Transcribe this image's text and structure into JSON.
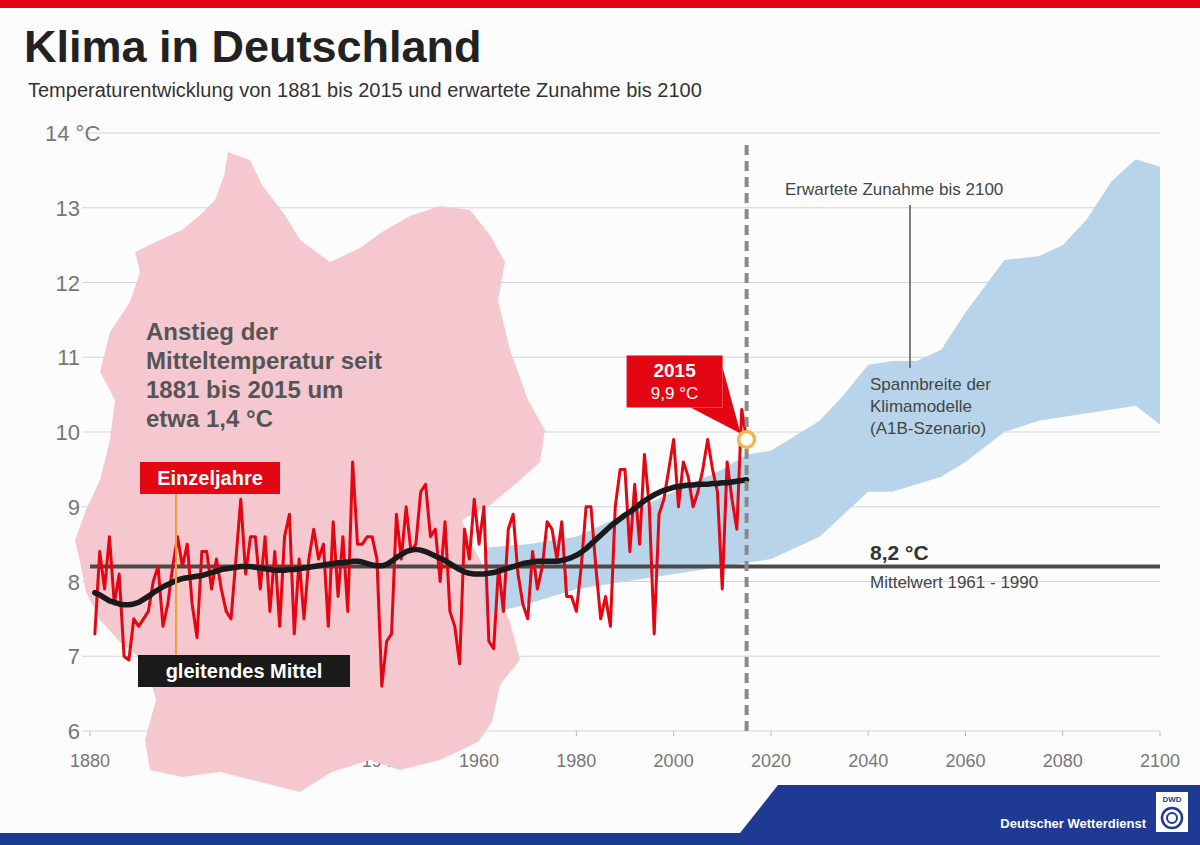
{
  "chart_data": {
    "type": "line",
    "title": "Klima in Deutschland",
    "subtitle": "Temperaturentwicklung von 1881 bis 2015 und erwartete Zunahme bis 2100",
    "x": [
      1881,
      1882,
      1883,
      1884,
      1885,
      1886,
      1887,
      1888,
      1889,
      1890,
      1891,
      1892,
      1893,
      1894,
      1895,
      1896,
      1897,
      1898,
      1899,
      1900,
      1901,
      1902,
      1903,
      1904,
      1905,
      1906,
      1907,
      1908,
      1909,
      1910,
      1911,
      1912,
      1913,
      1914,
      1915,
      1916,
      1917,
      1918,
      1919,
      1920,
      1921,
      1922,
      1923,
      1924,
      1925,
      1926,
      1927,
      1928,
      1929,
      1930,
      1931,
      1932,
      1933,
      1934,
      1935,
      1936,
      1937,
      1938,
      1939,
      1940,
      1941,
      1942,
      1943,
      1944,
      1945,
      1946,
      1947,
      1948,
      1949,
      1950,
      1951,
      1952,
      1953,
      1954,
      1955,
      1956,
      1957,
      1958,
      1959,
      1960,
      1961,
      1962,
      1963,
      1964,
      1965,
      1966,
      1967,
      1968,
      1969,
      1970,
      1971,
      1972,
      1973,
      1974,
      1975,
      1976,
      1977,
      1978,
      1979,
      1980,
      1981,
      1982,
      1983,
      1984,
      1985,
      1986,
      1987,
      1988,
      1989,
      1990,
      1991,
      1992,
      1993,
      1994,
      1995,
      1996,
      1997,
      1998,
      1999,
      2000,
      2001,
      2002,
      2003,
      2004,
      2005,
      2006,
      2007,
      2008,
      2009,
      2010,
      2011,
      2012,
      2013,
      2014,
      2015
    ],
    "series": [
      {
        "name": "Einzeljahre",
        "color": "#e30613",
        "values": [
          7.3,
          8.4,
          7.9,
          8.6,
          7.7,
          8.1,
          7.0,
          6.95,
          7.5,
          7.4,
          7.5,
          7.6,
          8.0,
          8.2,
          7.4,
          7.7,
          8.2,
          8.6,
          8.2,
          8.5,
          7.7,
          7.25,
          8.4,
          8.4,
          7.9,
          8.3,
          7.9,
          7.6,
          7.5,
          8.3,
          9.1,
          8.1,
          8.6,
          8.6,
          7.9,
          8.6,
          7.6,
          8.4,
          7.4,
          8.6,
          8.9,
          7.3,
          8.3,
          7.5,
          8.3,
          8.7,
          8.3,
          8.5,
          7.4,
          8.8,
          7.8,
          8.6,
          7.6,
          9.6,
          8.5,
          8.5,
          8.6,
          8.6,
          8.3,
          6.6,
          7.2,
          7.3,
          8.9,
          8.3,
          9.0,
          8.4,
          8.5,
          9.2,
          9.3,
          8.6,
          8.7,
          8.0,
          8.8,
          7.6,
          7.4,
          6.9,
          8.7,
          8.3,
          9.1,
          8.5,
          9.0,
          7.2,
          7.1,
          8.2,
          7.6,
          8.7,
          8.9,
          8.1,
          7.7,
          7.5,
          8.4,
          7.9,
          8.2,
          8.8,
          8.7,
          8.3,
          8.8,
          7.8,
          7.8,
          7.6,
          8.2,
          9.0,
          9.0,
          8.2,
          7.5,
          7.8,
          7.4,
          9.0,
          9.5,
          9.5,
          8.4,
          9.3,
          8.5,
          9.7,
          9.0,
          7.3,
          8.9,
          9.1,
          9.5,
          9.9,
          9.0,
          9.6,
          9.4,
          9.0,
          9.2,
          9.5,
          9.9,
          9.5,
          9.2,
          7.9,
          9.6,
          9.1,
          8.7,
          10.3,
          9.9
        ]
      },
      {
        "name": "gleitendes Mittel",
        "color": "#1a1a1a",
        "values": [
          7.85,
          7.82,
          7.78,
          7.74,
          7.72,
          7.7,
          7.69,
          7.69,
          7.7,
          7.72,
          7.76,
          7.8,
          7.85,
          7.89,
          7.93,
          7.96,
          7.99,
          8.02,
          8.04,
          8.05,
          8.06,
          8.07,
          8.08,
          8.1,
          8.12,
          8.14,
          8.16,
          8.17,
          8.18,
          8.19,
          8.2,
          8.2,
          8.2,
          8.19,
          8.18,
          8.17,
          8.16,
          8.15,
          8.15,
          8.15,
          8.16,
          8.16,
          8.17,
          8.18,
          8.19,
          8.2,
          8.21,
          8.22,
          8.23,
          8.24,
          8.25,
          8.25,
          8.26,
          8.27,
          8.27,
          8.26,
          8.24,
          8.22,
          8.21,
          8.21,
          8.23,
          8.27,
          8.32,
          8.36,
          8.4,
          8.42,
          8.43,
          8.42,
          8.4,
          8.37,
          8.34,
          8.31,
          8.28,
          8.24,
          8.2,
          8.16,
          8.13,
          8.11,
          8.1,
          8.1,
          8.1,
          8.11,
          8.12,
          8.14,
          8.16,
          8.18,
          8.2,
          8.22,
          8.24,
          8.25,
          8.26,
          8.27,
          8.27,
          8.27,
          8.27,
          8.27,
          8.28,
          8.3,
          8.32,
          8.35,
          8.39,
          8.44,
          8.5,
          8.56,
          8.62,
          8.68,
          8.74,
          8.79,
          8.84,
          8.89,
          8.93,
          8.98,
          9.03,
          9.08,
          9.12,
          9.16,
          9.19,
          9.22,
          9.24,
          9.26,
          9.27,
          9.28,
          9.29,
          9.29,
          9.3,
          9.3,
          9.3,
          9.31,
          9.31,
          9.32,
          9.32,
          9.33,
          9.34,
          9.35,
          9.36
        ]
      },
      {
        "name": "Spannbreite der Klimamodelle (A1B-Szenario)",
        "type": "area",
        "color": "#b8d4ea",
        "x": [
          1961,
          1970,
          1980,
          1990,
          2000,
          2010,
          2015,
          2020,
          2030,
          2035,
          2040,
          2045,
          2050,
          2055,
          2060,
          2068,
          2075,
          2080,
          2085,
          2090,
          2095,
          2100
        ],
        "lower": [
          7.55,
          7.7,
          7.9,
          8.0,
          8.1,
          8.2,
          8.25,
          8.3,
          8.6,
          8.9,
          9.2,
          9.2,
          9.3,
          9.4,
          9.6,
          10.0,
          10.15,
          10.2,
          10.25,
          10.3,
          10.35,
          10.1
        ],
        "values": [
          8.45,
          8.5,
          8.6,
          8.9,
          9.2,
          9.5,
          9.7,
          9.75,
          10.15,
          10.5,
          10.9,
          10.95,
          10.95,
          11.1,
          11.6,
          12.3,
          12.35,
          12.5,
          12.85,
          13.35,
          13.65,
          13.55
        ]
      }
    ],
    "xlim": [
      1880,
      2100
    ],
    "xticks": [
      1880,
      1900,
      1920,
      1940,
      1960,
      1980,
      2000,
      2020,
      2040,
      2060,
      2080,
      2100
    ],
    "ylim": [
      6,
      14
    ],
    "yticks": [
      6,
      7,
      8,
      9,
      10,
      11,
      12,
      13,
      {
        "value": 14,
        "label": "14 °C"
      }
    ],
    "grid": true,
    "annotations": [
      {
        "text": [
          "Anstieg der",
          "Mitteltemperatur seit",
          "1881 bis 2015 um",
          "etwa 1,4 °C"
        ]
      },
      {
        "text": [
          "Erwartete Zunahme bis 2100"
        ]
      }
    ],
    "callout": {
      "label": "2015",
      "text": "9,9 °C",
      "x": 2015,
      "y": 9.9
    },
    "reference_line": {
      "value": 8.2,
      "label": "8,2 °C",
      "text": "Mittelwert 1961 - 1990"
    },
    "divider": {
      "value": 2015
    },
    "source": "Deutscher Wetterdienst",
    "logo": "DWD"
  }
}
